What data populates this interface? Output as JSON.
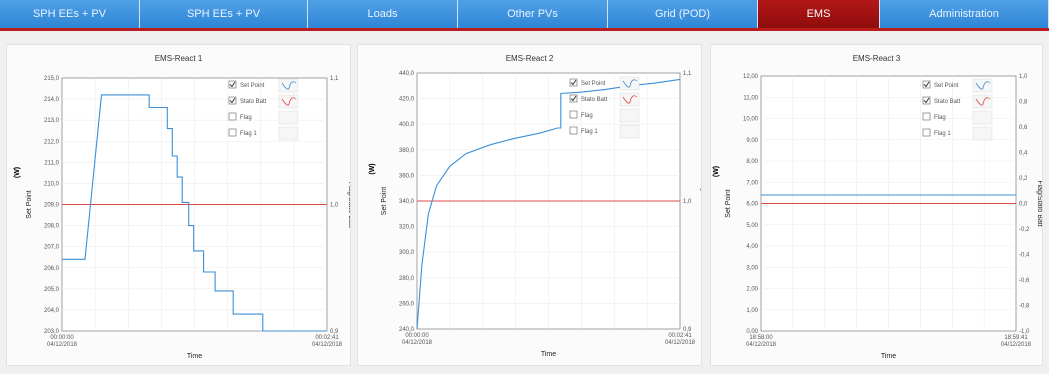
{
  "tabs": [
    {
      "label": "SPH EEs + PV",
      "active": false
    },
    {
      "label": "SPH EEs + PV",
      "active": false
    },
    {
      "label": "Loads",
      "active": false
    },
    {
      "label": "Other PVs",
      "active": false
    },
    {
      "label": "Grid (POD)",
      "active": false
    },
    {
      "label": "EMS",
      "active": true
    },
    {
      "label": "Administration",
      "active": false
    }
  ],
  "legend": [
    {
      "label": "Set Point",
      "checked": true,
      "color": "#3c8fd6"
    },
    {
      "label": "Stato Batt",
      "checked": true,
      "color": "#e04848"
    },
    {
      "label": "Flag",
      "checked": false,
      "color": "#bbbbbb"
    },
    {
      "label": "Flag 1",
      "checked": false,
      "color": "#bbbbbb"
    }
  ],
  "colors": {
    "set_point": "#3c8fd6",
    "stato_batt": "#e04848"
  },
  "chart_data": [
    {
      "type": "line",
      "title": "EMS-React 1",
      "xlabel": "Time",
      "ylabel": "Set Point",
      "unit": "(W)",
      "y2label": "Flag/Stato Batt",
      "yticks": [
        "215,0",
        "214,0",
        "213,0",
        "212,0",
        "211,0",
        "210,0",
        "209,0",
        "208,0",
        "207,0",
        "206,0",
        "205,0",
        "204,0",
        "203,0"
      ],
      "ylim": [
        203,
        215
      ],
      "y2ticks": [
        "1,1",
        "1,0",
        "0,9"
      ],
      "y2lim": [
        0.9,
        1.1
      ],
      "x_start": [
        "00:00:00",
        "04/12/2018"
      ],
      "x_end": [
        "00:02:41",
        "04/12/2018"
      ],
      "xlim": [
        0,
        161
      ],
      "series": [
        {
          "name": "Set Point",
          "points": [
            [
              0,
              206.4
            ],
            [
              14,
              206.4
            ],
            [
              24,
              214.2
            ],
            [
              53,
              214.2
            ],
            [
              53,
              213.6
            ],
            [
              64,
              213.6
            ],
            [
              64,
              212.6
            ],
            [
              67,
              212.6
            ],
            [
              67,
              211.3
            ],
            [
              70,
              211.3
            ],
            [
              70,
              210.3
            ],
            [
              73,
              210.3
            ],
            [
              73,
              209.1
            ],
            [
              77,
              209.1
            ],
            [
              77,
              208.0
            ],
            [
              80,
              208.0
            ],
            [
              80,
              206.8
            ],
            [
              86,
              206.8
            ],
            [
              86,
              205.8
            ],
            [
              93,
              205.8
            ],
            [
              93,
              204.9
            ],
            [
              104,
              204.9
            ],
            [
              104,
              203.8
            ],
            [
              122,
              203.8
            ],
            [
              122,
              203.0
            ],
            [
              161,
              203.0
            ]
          ]
        },
        {
          "name": "Stato Batt",
          "y2_value": 1.0
        }
      ]
    },
    {
      "type": "line",
      "title": "EMS-React 2",
      "xlabel": "Time",
      "ylabel": "Set Point",
      "unit": "(W)",
      "y2label": "Flag/Stato Batt",
      "yticks": [
        "440,0",
        "420,0",
        "400,0",
        "380,0",
        "360,0",
        "340,0",
        "320,0",
        "300,0",
        "280,0",
        "260,0",
        "240,0"
      ],
      "ylim": [
        240,
        440
      ],
      "y2ticks": [
        "1,1",
        "1,0",
        "0,9"
      ],
      "y2lim": [
        0.9,
        1.1
      ],
      "x_start": [
        "00:00:00",
        "04/12/2018"
      ],
      "x_end": [
        "00:02:41",
        "04/12/2018"
      ],
      "xlim": [
        0,
        161
      ],
      "series": [
        {
          "name": "Set Point",
          "points": [
            [
              0,
              240
            ],
            [
              3,
              290
            ],
            [
              7,
              330
            ],
            [
              12,
              352
            ],
            [
              20,
              367
            ],
            [
              30,
              377
            ],
            [
              45,
              384
            ],
            [
              60,
              389
            ],
            [
              75,
              393
            ],
            [
              86,
              397
            ],
            [
              88,
              397
            ],
            [
              88,
              424
            ],
            [
              100,
              425
            ],
            [
              115,
              427
            ],
            [
              130,
              430
            ],
            [
              145,
              432
            ],
            [
              161,
              435
            ]
          ]
        },
        {
          "name": "Stato Batt",
          "y2_value": 1.0
        }
      ]
    },
    {
      "type": "line",
      "title": "EMS-React 3",
      "xlabel": "Time",
      "ylabel": "Set Point",
      "unit": "(W)",
      "y2label": "Flag/Stato Batt",
      "yticks": [
        "12,00",
        "11,00",
        "10,00",
        "9,00",
        "8,00",
        "7,00",
        "6,00",
        "5,00",
        "4,00",
        "3,00",
        "2,00",
        "1,00",
        "0,00"
      ],
      "ylim": [
        0,
        12
      ],
      "y2ticks": [
        "1,0",
        "0,8",
        "0,6",
        "0,4",
        "0,2",
        "0,0",
        "-0,2",
        "-0,4",
        "-0,6",
        "-0,8",
        "-1,0"
      ],
      "y2lim": [
        -1,
        1
      ],
      "x_start": [
        "18:58:00",
        "04/12/2018"
      ],
      "x_end": [
        "18:59:41",
        "04/12/2018"
      ],
      "xlim": [
        0,
        101
      ],
      "series": [
        {
          "name": "Set Point",
          "points": [
            [
              0,
              6.4
            ],
            [
              101,
              6.4
            ]
          ]
        },
        {
          "name": "Stato Batt",
          "y2_value": 0.0
        }
      ]
    }
  ]
}
